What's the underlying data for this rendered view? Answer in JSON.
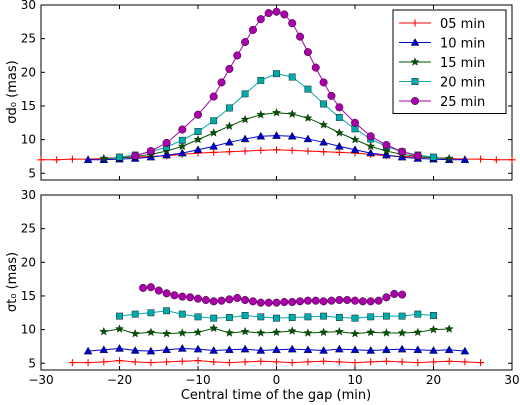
{
  "figure": {
    "xlabel": "Central time of the gap (min)"
  },
  "chart_data": [
    {
      "type": "line",
      "ylabel": "σd₀ (mas)",
      "xlim": [
        -30,
        30
      ],
      "ylim": [
        4,
        30
      ],
      "xticks": [
        "−30",
        "−20",
        "−10",
        "0",
        "10",
        "20",
        "30"
      ],
      "yticks": [
        "5",
        "10",
        "15",
        "20",
        "25",
        "30"
      ],
      "legend": {
        "position": "top-right"
      },
      "series": [
        {
          "name": "05 min",
          "color": "#ff0000",
          "marker": "plus",
          "x": [
            -30,
            -28,
            -26,
            -24,
            -22,
            -20,
            -18,
            -16,
            -14,
            -12,
            -10,
            -8,
            -6,
            -4,
            -2,
            0,
            2,
            4,
            6,
            8,
            10,
            12,
            14,
            16,
            18,
            20,
            22,
            24,
            26,
            28,
            30
          ],
          "y": [
            7.0,
            7.0,
            7.1,
            7.1,
            7.2,
            7.3,
            7.4,
            7.5,
            7.6,
            7.8,
            8.0,
            8.1,
            8.2,
            8.3,
            8.4,
            8.5,
            8.4,
            8.3,
            8.2,
            8.1,
            8.0,
            7.8,
            7.6,
            7.5,
            7.4,
            7.3,
            7.2,
            7.1,
            7.1,
            7.0,
            7.0
          ]
        },
        {
          "name": "10 min",
          "color": "#0000cc",
          "marker": "triangle",
          "x": [
            -24,
            -22,
            -20,
            -18,
            -16,
            -14,
            -12,
            -10,
            -8,
            -6,
            -4,
            -2,
            0,
            2,
            4,
            6,
            8,
            10,
            12,
            14,
            16,
            18,
            20,
            22,
            24
          ],
          "y": [
            7.0,
            7.0,
            7.1,
            7.2,
            7.4,
            7.7,
            8.0,
            8.5,
            9.0,
            9.6,
            10.1,
            10.5,
            10.6,
            10.5,
            10.1,
            9.6,
            9.0,
            8.5,
            8.0,
            7.7,
            7.4,
            7.2,
            7.1,
            7.0,
            7.0
          ]
        },
        {
          "name": "15 min",
          "color": "#005500",
          "marker": "star",
          "x": [
            -22,
            -20,
            -18,
            -16,
            -14,
            -12,
            -10,
            -8,
            -6,
            -4,
            -2,
            0,
            2,
            4,
            6,
            8,
            10,
            12,
            14,
            16,
            18,
            20,
            22
          ],
          "y": [
            7.2,
            7.3,
            7.5,
            7.8,
            8.3,
            9.0,
            10.0,
            11.0,
            12.0,
            13.0,
            13.7,
            14.0,
            13.8,
            13.2,
            12.2,
            11.0,
            10.0,
            9.0,
            8.3,
            7.8,
            7.5,
            7.3,
            7.2
          ]
        },
        {
          "name": "20 min",
          "color": "#00aaaa",
          "marker": "square",
          "x": [
            -20,
            -18,
            -16,
            -14,
            -12,
            -10,
            -8,
            -6,
            -4,
            -2,
            0,
            2,
            4,
            6,
            8,
            10,
            12,
            14,
            16,
            18,
            20
          ],
          "y": [
            7.4,
            7.7,
            8.2,
            8.9,
            9.9,
            11.2,
            12.8,
            14.7,
            16.8,
            18.8,
            19.8,
            19.3,
            17.5,
            15.3,
            13.3,
            11.6,
            10.1,
            9.0,
            8.2,
            7.7,
            7.4
          ]
        },
        {
          "name": "25 min",
          "color": "#aa00aa",
          "marker": "circle",
          "x": [
            -18,
            -16,
            -14,
            -12,
            -10,
            -8,
            -7,
            -6,
            -5,
            -4,
            -3,
            -2,
            -1,
            0,
            1,
            2,
            3,
            4,
            5,
            6,
            7,
            8,
            10,
            12,
            14,
            16,
            18
          ],
          "y": [
            7.6,
            8.3,
            9.5,
            11.5,
            13.7,
            16.4,
            18.5,
            20.5,
            22.5,
            24.5,
            26.3,
            27.9,
            28.8,
            29.0,
            28.6,
            27.3,
            25.3,
            23.0,
            20.7,
            18.5,
            16.5,
            14.8,
            12.5,
            10.5,
            9.2,
            8.2,
            7.6
          ]
        }
      ]
    },
    {
      "type": "line",
      "ylabel": "σt₀ (mas)",
      "xlim": [
        -30,
        30
      ],
      "ylim": [
        4,
        30
      ],
      "xticks": [
        "−30",
        "−20",
        "−10",
        "0",
        "10",
        "20",
        "30"
      ],
      "yticks": [
        "5",
        "10",
        "15",
        "20",
        "25",
        "30"
      ],
      "series": [
        {
          "name": "05 min",
          "color": "#ff0000",
          "marker": "plus",
          "x": [
            -26,
            -24,
            -22,
            -20,
            -18,
            -16,
            -14,
            -12,
            -10,
            -8,
            -6,
            -4,
            -2,
            0,
            2,
            4,
            6,
            8,
            10,
            12,
            14,
            16,
            18,
            20,
            22,
            24,
            26
          ],
          "y": [
            5.1,
            5.1,
            5.2,
            5.4,
            5.2,
            5.1,
            5.2,
            5.3,
            5.4,
            5.2,
            5.1,
            5.2,
            5.3,
            5.2,
            5.1,
            5.2,
            5.3,
            5.2,
            5.1,
            5.2,
            5.3,
            5.2,
            5.1,
            5.2,
            5.3,
            5.2,
            5.1
          ]
        },
        {
          "name": "10 min",
          "color": "#0000cc",
          "marker": "triangle",
          "x": [
            -24,
            -22,
            -20,
            -18,
            -16,
            -14,
            -12,
            -10,
            -8,
            -6,
            -4,
            -2,
            0,
            2,
            4,
            6,
            8,
            10,
            12,
            14,
            16,
            18,
            20,
            22,
            24
          ],
          "y": [
            6.8,
            7.0,
            7.2,
            6.9,
            6.8,
            7.0,
            7.2,
            7.1,
            6.9,
            7.0,
            7.1,
            6.9,
            7.0,
            7.1,
            7.0,
            6.9,
            7.1,
            7.0,
            6.9,
            7.0,
            7.1,
            7.0,
            6.9,
            7.0,
            6.8
          ]
        },
        {
          "name": "15 min",
          "color": "#005500",
          "marker": "star",
          "x": [
            -22,
            -20,
            -18,
            -16,
            -14,
            -12,
            -10,
            -8,
            -6,
            -4,
            -2,
            0,
            2,
            4,
            6,
            8,
            10,
            12,
            14,
            16,
            18,
            20,
            22
          ],
          "y": [
            9.7,
            10.1,
            9.4,
            9.6,
            9.4,
            9.5,
            9.6,
            10.2,
            9.5,
            9.7,
            9.5,
            9.6,
            9.8,
            9.5,
            9.6,
            9.7,
            9.4,
            9.6,
            9.5,
            9.5,
            9.6,
            10.0,
            10.1
          ]
        },
        {
          "name": "20 min",
          "color": "#00aaaa",
          "marker": "square",
          "x": [
            -20,
            -18,
            -16,
            -14,
            -12,
            -10,
            -8,
            -6,
            -4,
            -2,
            0,
            2,
            4,
            6,
            8,
            10,
            12,
            14,
            16,
            18,
            20
          ],
          "y": [
            12.0,
            12.3,
            12.5,
            12.8,
            12.3,
            11.9,
            11.7,
            11.8,
            12.1,
            11.9,
            11.7,
            11.8,
            11.9,
            12.0,
            11.8,
            11.7,
            11.9,
            12.0,
            12.0,
            12.3,
            12.1
          ]
        },
        {
          "name": "25 min",
          "color": "#aa00aa",
          "marker": "circle",
          "x": [
            -17,
            -16,
            -15,
            -14,
            -13,
            -12,
            -11,
            -10,
            -9,
            -8,
            -7,
            -6,
            -5,
            -4,
            -3,
            -2,
            -1,
            0,
            1,
            2,
            3,
            4,
            5,
            6,
            7,
            8,
            9,
            10,
            11,
            12,
            13,
            14,
            15,
            16
          ],
          "y": [
            16.2,
            16.3,
            15.8,
            15.4,
            15.1,
            14.9,
            14.8,
            14.6,
            14.4,
            14.2,
            14.3,
            14.5,
            14.7,
            14.4,
            14.2,
            14.0,
            14.0,
            14.0,
            14.1,
            14.1,
            14.2,
            14.3,
            14.3,
            14.2,
            14.3,
            14.4,
            14.4,
            14.3,
            14.2,
            14.2,
            14.3,
            14.8,
            15.3,
            15.2
          ]
        }
      ]
    }
  ]
}
